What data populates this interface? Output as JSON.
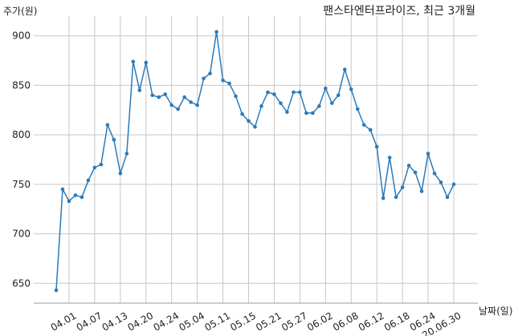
{
  "chart_data": {
    "type": "line",
    "title": "팬스타엔터프라이즈, 최근 3개월",
    "y_label": "주가(원)",
    "x_label": "날짜(일)",
    "categories": [
      null,
      null,
      "04.01",
      null,
      null,
      null,
      "04.07",
      null,
      null,
      null,
      "04.13",
      null,
      null,
      null,
      "04.20",
      null,
      null,
      null,
      "04.24",
      null,
      null,
      null,
      "05.04",
      null,
      null,
      null,
      "05.11",
      null,
      null,
      null,
      "05.15",
      null,
      null,
      null,
      "05.21",
      null,
      null,
      null,
      "05.27",
      null,
      null,
      null,
      "06.02",
      null,
      null,
      null,
      "06.08",
      null,
      null,
      null,
      "06.12",
      null,
      null,
      null,
      "06.18",
      null,
      null,
      null,
      "06.24",
      null,
      null,
      null,
      "20.06.30"
    ],
    "series": [
      {
        "name": "주가",
        "color": "#2b7bba",
        "values": [
          643,
          745,
          733,
          739,
          737,
          754,
          767,
          770,
          810,
          795,
          761,
          781,
          874,
          845,
          873,
          840,
          838,
          841,
          830,
          826,
          838,
          833,
          830,
          857,
          862,
          904,
          855,
          852,
          839,
          821,
          814,
          808,
          829,
          843,
          841,
          832,
          823,
          843,
          843,
          822,
          822,
          829,
          847,
          832,
          840,
          866,
          846,
          826,
          810,
          805,
          788,
          736,
          777,
          737,
          747,
          769,
          762,
          743,
          781,
          761,
          752,
          737,
          750
        ]
      }
    ],
    "ylim": [
      630,
      920
    ],
    "yticks": [
      650,
      700,
      750,
      800,
      850,
      900
    ],
    "grid": true
  }
}
